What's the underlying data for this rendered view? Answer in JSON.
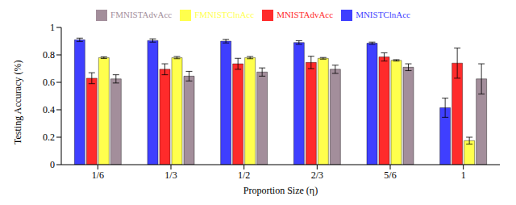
{
  "chart_data": {
    "type": "bar",
    "x_label": "Proportion Size (η)",
    "y_label": "Testing Accuracy (%)",
    "categories": [
      "1/6",
      "1/3",
      "1/2",
      "2/3",
      "5/6",
      "1"
    ],
    "series": [
      {
        "name": "MNISTClnAcc",
        "color": "#3f3fff",
        "values": [
          0.91,
          0.905,
          0.9,
          0.89,
          0.885,
          0.415
        ],
        "errors": [
          0.012,
          0.012,
          0.013,
          0.013,
          0.008,
          0.07
        ]
      },
      {
        "name": "MNISTAdvAcc",
        "color": "#ff2b2b",
        "values": [
          0.63,
          0.695,
          0.735,
          0.745,
          0.785,
          0.74
        ],
        "errors": [
          0.04,
          0.04,
          0.04,
          0.045,
          0.03,
          0.11
        ]
      },
      {
        "name": "FMNISTClnAcc",
        "color": "#ffff4d",
        "values": [
          0.78,
          0.78,
          0.78,
          0.775,
          0.76,
          0.175
        ],
        "errors": [
          0.006,
          0.008,
          0.008,
          0.006,
          0.005,
          0.025
        ]
      },
      {
        "name": "FMNISTAdvAcc",
        "color": "#a38e9b",
        "values": [
          0.625,
          0.645,
          0.675,
          0.695,
          0.71,
          0.625
        ],
        "errors": [
          0.03,
          0.035,
          0.03,
          0.03,
          0.025,
          0.11
        ]
      }
    ],
    "ylim": [
      0,
      1
    ],
    "yticks": [
      0,
      0.2,
      0.4,
      0.6,
      0.8,
      1
    ],
    "grid": false,
    "legend": "top"
  }
}
